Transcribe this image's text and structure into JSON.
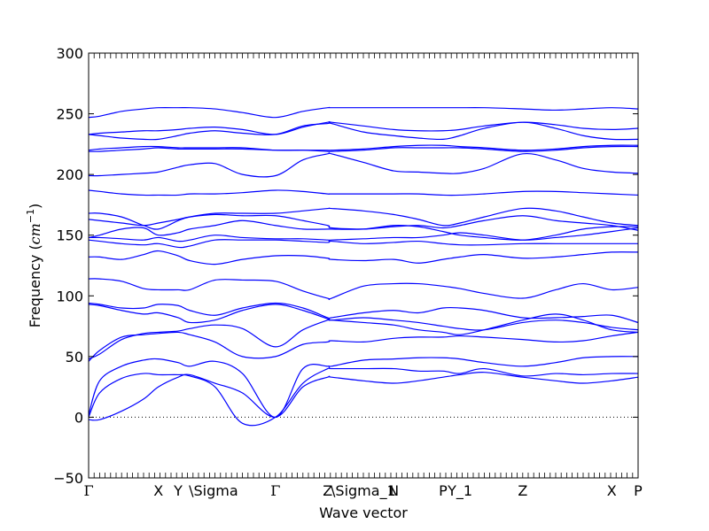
{
  "colors": {
    "band": "#0000ff",
    "axis": "#000000",
    "zero_line": "#000000",
    "background": "#ffffff"
  },
  "chart_data": {
    "type": "line",
    "xlabel": "Wave vector",
    "ylabel_prefix": "Frequency (",
    "ylabel_unit_italic": "cm",
    "ylabel_unit_exp": "−1",
    "ylabel_suffix": ")",
    "ylim": [
      -50,
      300
    ],
    "yticks": [
      -50,
      0,
      50,
      100,
      150,
      200,
      250,
      300
    ],
    "yticks_labels": [
      "−50",
      "0",
      "50",
      "100",
      "150",
      "200",
      "250",
      "300"
    ],
    "xlim": [
      0,
      1
    ],
    "grid": false,
    "legend": "none",
    "zero_line": {
      "y": 0,
      "style": "dotted"
    },
    "qpoints": [
      {
        "x": 0.0,
        "label": "Γ",
        "greek": true
      },
      {
        "x": 0.127,
        "label": "X",
        "greek": false
      },
      {
        "x": 0.163,
        "label": "Y",
        "greek": false
      },
      {
        "x": 0.184,
        "label": "\\Sigma",
        "greek": false
      },
      {
        "x": 0.34,
        "label": "Γ",
        "greek": true
      },
      {
        "x": 0.435,
        "label": "Z",
        "greek": false
      },
      {
        "x": 0.442,
        "label": "\\Sigma_1",
        "greek": false
      },
      {
        "x": 0.555,
        "label": "N",
        "greek": false
      },
      {
        "x": 0.645,
        "label": "P",
        "greek": false
      },
      {
        "x": 0.676,
        "label": "Y_1",
        "greek": false
      },
      {
        "x": 0.79,
        "label": "Z",
        "greek": false
      },
      {
        "x": 0.952,
        "label": "X",
        "greek": false
      },
      {
        "x": 1.0,
        "label": "P",
        "greek": false
      }
    ],
    "series": [
      {
        "x": [
          0,
          0.02,
          0.06,
          0.1,
          0.127,
          0.163,
          0.184,
          0.23,
          0.28,
          0.34,
          0.39,
          0.435,
          0.442,
          0.5,
          0.555,
          0.6,
          0.645,
          0.676,
          0.72,
          0.79,
          0.85,
          0.9,
          0.952,
          1.0
        ],
        "y": [
          -2,
          -2,
          5,
          15,
          25,
          33,
          35,
          28,
          20,
          0,
          25,
          33,
          33,
          30,
          28,
          30,
          33,
          35,
          37,
          33,
          30,
          28,
          30,
          33
        ]
      },
      {
        "x": [
          0,
          0.02,
          0.06,
          0.1,
          0.127,
          0.163,
          0.184,
          0.23,
          0.28,
          0.34,
          0.39,
          0.435,
          0.442,
          0.5,
          0.555,
          0.6,
          0.645,
          0.676,
          0.72,
          0.79,
          0.85,
          0.9,
          0.952,
          1.0
        ],
        "y": [
          0,
          20,
          32,
          36,
          35,
          35,
          34,
          25,
          -5,
          0,
          28,
          40,
          40,
          40,
          40,
          38,
          38,
          36,
          40,
          34,
          36,
          35,
          36,
          36
        ]
      },
      {
        "x": [
          0,
          0.02,
          0.06,
          0.1,
          0.127,
          0.163,
          0.184,
          0.23,
          0.28,
          0.34,
          0.39,
          0.435,
          0.442,
          0.5,
          0.555,
          0.6,
          0.645,
          0.676,
          0.72,
          0.79,
          0.85,
          0.9,
          0.952,
          1.0
        ],
        "y": [
          2,
          30,
          42,
          47,
          48,
          45,
          42,
          46,
          36,
          0,
          40,
          42,
          42,
          47,
          48,
          49,
          49,
          48,
          45,
          42,
          45,
          49,
          50,
          50
        ]
      },
      {
        "x": [
          0,
          0.02,
          0.06,
          0.1,
          0.127,
          0.163,
          0.184,
          0.23,
          0.28,
          0.34,
          0.39,
          0.435,
          0.442,
          0.5,
          0.555,
          0.6,
          0.645,
          0.676,
          0.72,
          0.79,
          0.85,
          0.9,
          0.952,
          1.0
        ],
        "y": [
          46,
          55,
          66,
          68,
          69,
          70,
          68,
          62,
          50,
          50,
          60,
          62,
          63,
          62,
          65,
          66,
          66,
          67,
          66,
          64,
          62,
          63,
          67,
          70
        ]
      },
      {
        "x": [
          0,
          0.02,
          0.06,
          0.1,
          0.127,
          0.163,
          0.184,
          0.23,
          0.28,
          0.34,
          0.39,
          0.435,
          0.442,
          0.5,
          0.555,
          0.6,
          0.645,
          0.676,
          0.72,
          0.79,
          0.85,
          0.9,
          0.952,
          1.0
        ],
        "y": [
          48,
          52,
          64,
          69,
          70,
          71,
          73,
          76,
          73,
          58,
          72,
          80,
          80,
          78,
          76,
          72,
          70,
          68,
          72,
          80,
          85,
          80,
          72,
          70
        ]
      },
      {
        "x": [
          0,
          0.02,
          0.06,
          0.1,
          0.127,
          0.163,
          0.184,
          0.23,
          0.28,
          0.34,
          0.39,
          0.435,
          0.442,
          0.5,
          0.555,
          0.6,
          0.645,
          0.676,
          0.72,
          0.79,
          0.85,
          0.9,
          0.952,
          1.0
        ],
        "y": [
          93,
          92,
          88,
          85,
          86,
          82,
          78,
          80,
          88,
          93,
          88,
          81,
          80,
          82,
          80,
          78,
          75,
          73,
          72,
          78,
          80,
          78,
          74,
          72
        ]
      },
      {
        "x": [
          0,
          0.02,
          0.06,
          0.1,
          0.127,
          0.163,
          0.184,
          0.23,
          0.28,
          0.34,
          0.39,
          0.435,
          0.442,
          0.5,
          0.555,
          0.6,
          0.645,
          0.676,
          0.72,
          0.79,
          0.85,
          0.9,
          0.952,
          1.0
        ],
        "y": [
          94,
          93,
          90,
          90,
          93,
          92,
          88,
          84,
          90,
          94,
          90,
          82,
          82,
          86,
          88,
          86,
          90,
          90,
          88,
          82,
          82,
          83,
          84,
          78
        ]
      },
      {
        "x": [
          0,
          0.02,
          0.06,
          0.1,
          0.127,
          0.163,
          0.184,
          0.23,
          0.28,
          0.34,
          0.39,
          0.435,
          0.442,
          0.5,
          0.555,
          0.6,
          0.645,
          0.676,
          0.72,
          0.79,
          0.85,
          0.9,
          0.952,
          1.0
        ],
        "y": [
          114,
          114,
          112,
          106,
          105,
          105,
          105,
          113,
          113,
          112,
          104,
          98,
          98,
          108,
          110,
          110,
          108,
          106,
          102,
          98,
          105,
          110,
          105,
          107
        ]
      },
      {
        "x": [
          0,
          0.02,
          0.06,
          0.1,
          0.127,
          0.163,
          0.184,
          0.23,
          0.28,
          0.34,
          0.39,
          0.435,
          0.442,
          0.5,
          0.555,
          0.6,
          0.645,
          0.676,
          0.72,
          0.79,
          0.85,
          0.9,
          0.952,
          1.0
        ],
        "y": [
          132,
          132,
          130,
          134,
          137,
          133,
          129,
          126,
          130,
          133,
          133,
          131,
          130,
          129,
          130,
          127,
          130,
          132,
          134,
          131,
          132,
          134,
          136,
          136
        ]
      },
      {
        "x": [
          0,
          0.02,
          0.06,
          0.1,
          0.127,
          0.163,
          0.184,
          0.23,
          0.28,
          0.34,
          0.39,
          0.435,
          0.442,
          0.5,
          0.555,
          0.6,
          0.645,
          0.676,
          0.72,
          0.79,
          0.85,
          0.9,
          0.952,
          1.0
        ],
        "y": [
          146,
          145,
          143,
          142,
          143,
          140,
          141,
          146,
          146,
          146,
          145,
          144,
          145,
          143,
          144,
          145,
          143,
          142,
          142,
          143,
          143,
          143,
          143,
          143
        ]
      },
      {
        "x": [
          0,
          0.02,
          0.06,
          0.1,
          0.127,
          0.163,
          0.184,
          0.23,
          0.28,
          0.34,
          0.39,
          0.435,
          0.442,
          0.5,
          0.555,
          0.6,
          0.645,
          0.676,
          0.72,
          0.79,
          0.85,
          0.9,
          0.952,
          1.0
        ],
        "y": [
          148,
          148,
          147,
          146,
          148,
          145,
          146,
          150,
          148,
          147,
          147,
          146,
          146,
          147,
          148,
          148,
          150,
          152,
          150,
          146,
          148,
          150,
          153,
          156
        ]
      },
      {
        "x": [
          0,
          0.02,
          0.06,
          0.1,
          0.127,
          0.163,
          0.184,
          0.23,
          0.28,
          0.34,
          0.39,
          0.435,
          0.442,
          0.5,
          0.555,
          0.6,
          0.645,
          0.676,
          0.72,
          0.79,
          0.85,
          0.9,
          0.952,
          1.0
        ],
        "y": [
          148,
          150,
          155,
          156,
          150,
          152,
          155,
          158,
          162,
          158,
          155,
          155,
          155,
          155,
          158,
          157,
          153,
          150,
          148,
          146,
          150,
          155,
          157,
          157
        ]
      },
      {
        "x": [
          0,
          0.02,
          0.06,
          0.1,
          0.127,
          0.163,
          0.184,
          0.23,
          0.28,
          0.34,
          0.39,
          0.435,
          0.442,
          0.5,
          0.555,
          0.6,
          0.645,
          0.676,
          0.72,
          0.79,
          0.85,
          0.9,
          0.952,
          1.0
        ],
        "y": [
          163,
          162,
          160,
          158,
          160,
          163,
          165,
          167,
          166,
          166,
          162,
          158,
          156,
          155,
          157,
          158,
          156,
          158,
          162,
          166,
          162,
          160,
          158,
          154
        ]
      },
      {
        "x": [
          0,
          0.02,
          0.06,
          0.1,
          0.127,
          0.163,
          0.184,
          0.23,
          0.28,
          0.34,
          0.39,
          0.435,
          0.442,
          0.5,
          0.555,
          0.6,
          0.645,
          0.676,
          0.72,
          0.79,
          0.85,
          0.9,
          0.952,
          1.0
        ],
        "y": [
          168,
          168,
          165,
          158,
          155,
          162,
          165,
          168,
          168,
          168,
          170,
          172,
          172,
          170,
          167,
          163,
          158,
          160,
          165,
          172,
          170,
          165,
          160,
          158
        ]
      },
      {
        "x": [
          0,
          0.02,
          0.06,
          0.1,
          0.127,
          0.163,
          0.184,
          0.23,
          0.28,
          0.34,
          0.39,
          0.435,
          0.442,
          0.5,
          0.555,
          0.6,
          0.645,
          0.676,
          0.72,
          0.79,
          0.85,
          0.9,
          0.952,
          1.0
        ],
        "y": [
          187,
          186,
          184,
          183,
          183,
          183,
          184,
          184,
          185,
          187,
          186,
          184,
          184,
          184,
          184,
          184,
          183,
          183,
          184,
          186,
          186,
          185,
          184,
          183
        ]
      },
      {
        "x": [
          0,
          0.02,
          0.06,
          0.1,
          0.127,
          0.163,
          0.184,
          0.23,
          0.28,
          0.34,
          0.39,
          0.435,
          0.442,
          0.5,
          0.555,
          0.6,
          0.645,
          0.676,
          0.72,
          0.79,
          0.85,
          0.9,
          0.952,
          1.0
        ],
        "y": [
          199,
          199,
          200,
          201,
          202,
          206,
          208,
          209,
          200,
          199,
          212,
          217,
          217,
          210,
          203,
          202,
          201,
          201,
          205,
          217,
          212,
          205,
          202,
          201
        ]
      },
      {
        "x": [
          0,
          0.02,
          0.06,
          0.1,
          0.127,
          0.163,
          0.184,
          0.23,
          0.28,
          0.34,
          0.39,
          0.435,
          0.442,
          0.5,
          0.555,
          0.6,
          0.645,
          0.676,
          0.72,
          0.79,
          0.85,
          0.9,
          0.952,
          1.0
        ],
        "y": [
          219,
          219,
          220,
          221,
          222,
          221,
          221,
          221,
          221,
          220,
          220,
          219,
          219,
          220,
          222,
          222,
          222,
          222,
          221,
          219,
          220,
          222,
          223,
          223
        ]
      },
      {
        "x": [
          0,
          0.02,
          0.06,
          0.1,
          0.127,
          0.163,
          0.184,
          0.23,
          0.28,
          0.34,
          0.39,
          0.435,
          0.442,
          0.5,
          0.555,
          0.6,
          0.645,
          0.676,
          0.72,
          0.79,
          0.85,
          0.9,
          0.952,
          1.0
        ],
        "y": [
          220,
          221,
          222,
          223,
          223,
          222,
          222,
          222,
          222,
          220,
          220,
          220,
          220,
          221,
          223,
          224,
          224,
          223,
          222,
          220,
          221,
          223,
          224,
          224
        ]
      },
      {
        "x": [
          0,
          0.02,
          0.06,
          0.1,
          0.127,
          0.163,
          0.184,
          0.23,
          0.28,
          0.34,
          0.39,
          0.435,
          0.442,
          0.5,
          0.555,
          0.6,
          0.645,
          0.676,
          0.72,
          0.79,
          0.85,
          0.9,
          0.952,
          1.0
        ],
        "y": [
          233,
          232,
          230,
          229,
          229,
          232,
          234,
          236,
          234,
          233,
          240,
          242,
          242,
          235,
          232,
          230,
          229,
          232,
          238,
          243,
          238,
          232,
          229,
          229
        ]
      },
      {
        "x": [
          0,
          0.02,
          0.06,
          0.1,
          0.127,
          0.163,
          0.184,
          0.23,
          0.28,
          0.34,
          0.39,
          0.435,
          0.442,
          0.5,
          0.555,
          0.6,
          0.645,
          0.676,
          0.72,
          0.79,
          0.85,
          0.9,
          0.952,
          1.0
        ],
        "y": [
          233,
          234,
          235,
          236,
          236,
          237,
          238,
          239,
          237,
          233,
          239,
          243,
          243,
          240,
          237,
          236,
          236,
          237,
          240,
          243,
          241,
          238,
          237,
          238
        ]
      },
      {
        "x": [
          0,
          0.02,
          0.06,
          0.1,
          0.127,
          0.163,
          0.184,
          0.23,
          0.28,
          0.34,
          0.39,
          0.435,
          0.442,
          0.5,
          0.555,
          0.6,
          0.645,
          0.676,
          0.72,
          0.79,
          0.85,
          0.9,
          0.952,
          1.0
        ],
        "y": [
          247,
          248,
          252,
          254,
          255,
          255,
          255,
          254,
          251,
          247,
          252,
          255,
          255,
          255,
          255,
          255,
          255,
          255,
          255,
          254,
          253,
          254,
          255,
          254
        ]
      }
    ]
  }
}
